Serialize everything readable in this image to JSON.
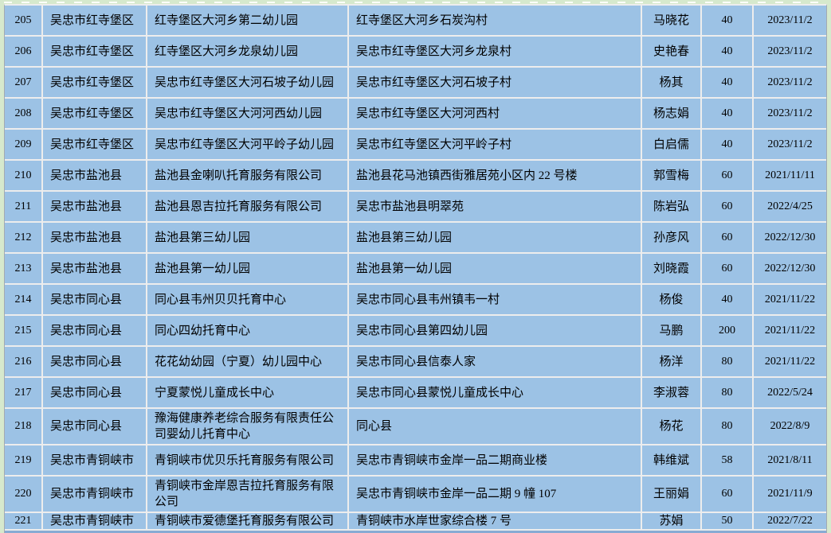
{
  "colors": {
    "cell-blue": "#9cc2e5",
    "margin-green": "#d6e9cd",
    "gridline": "#ededed",
    "table-edge": "#a3aab1",
    "partial-row-blue": "#88abd3",
    "text": "#000000"
  },
  "table": {
    "columns": [
      {
        "key": "row_no",
        "name": "row-number"
      },
      {
        "key": "district",
        "name": "district"
      },
      {
        "key": "name",
        "name": "facility-name"
      },
      {
        "key": "address",
        "name": "address"
      },
      {
        "key": "person",
        "name": "contact-person"
      },
      {
        "key": "capacity",
        "name": "capacity"
      },
      {
        "key": "date",
        "name": "date"
      }
    ],
    "rows": [
      {
        "row_no": "205",
        "district": "吴忠市红寺堡区",
        "name": "红寺堡区大河乡第二幼儿园",
        "address": "红寺堡区大河乡石炭沟村",
        "person": "马晓花",
        "capacity": "40",
        "date": "2023/11/2"
      },
      {
        "row_no": "206",
        "district": "吴忠市红寺堡区",
        "name": "红寺堡区大河乡龙泉幼儿园",
        "address": "吴忠市红寺堡区大河乡龙泉村",
        "person": "史艳春",
        "capacity": "40",
        "date": "2023/11/2"
      },
      {
        "row_no": "207",
        "district": "吴忠市红寺堡区",
        "name": "吴忠市红寺堡区大河石坡子幼儿园",
        "address": "吴忠市红寺堡区大河石坡子村",
        "person": "杨其",
        "capacity": "40",
        "date": "2023/11/2"
      },
      {
        "row_no": "208",
        "district": "吴忠市红寺堡区",
        "name": "吴忠市红寺堡区大河河西幼儿园",
        "address": "吴忠市红寺堡区大河河西村",
        "person": "杨志娟",
        "capacity": "40",
        "date": "2023/11/2"
      },
      {
        "row_no": "209",
        "district": "吴忠市红寺堡区",
        "name": "吴忠市红寺堡区大河平岭子幼儿园",
        "address": "吴忠市红寺堡区大河平岭子村",
        "person": "白启儒",
        "capacity": "40",
        "date": "2023/11/2"
      },
      {
        "row_no": "210",
        "district": "吴忠市盐池县",
        "name": "盐池县金喇叭托育服务有限公司",
        "address": "盐池县花马池镇西街雅居苑小区内 22 号楼",
        "person": "郭雪梅",
        "capacity": "60",
        "date": "2021/11/11"
      },
      {
        "row_no": "211",
        "district": "吴忠市盐池县",
        "name": "盐池县恩吉拉托育服务有限公司",
        "address": "吴忠市盐池县明翠苑",
        "person": "陈岩弘",
        "capacity": "60",
        "date": "2022/4/25"
      },
      {
        "row_no": "212",
        "district": "吴忠市盐池县",
        "name": "盐池县第三幼儿园",
        "address": "盐池县第三幼儿园",
        "person": "孙彦风",
        "capacity": "60",
        "date": "2022/12/30"
      },
      {
        "row_no": "213",
        "district": "吴忠市盐池县",
        "name": "盐池县第一幼儿园",
        "address": "盐池县第一幼儿园",
        "person": "刘晓霞",
        "capacity": "60",
        "date": "2022/12/30"
      },
      {
        "row_no": "214",
        "district": "吴忠市同心县",
        "name": "同心县韦州贝贝托育中心",
        "address": "吴忠市同心县韦州镇韦一村",
        "person": "杨俊",
        "capacity": "40",
        "date": "2021/11/22"
      },
      {
        "row_no": "215",
        "district": "吴忠市同心县",
        "name": "同心四幼托育中心",
        "address": "吴忠市同心县第四幼儿园",
        "person": "马鹏",
        "capacity": "200",
        "date": "2021/11/22"
      },
      {
        "row_no": "216",
        "district": "吴忠市同心县",
        "name": "花花幼幼园（宁夏）幼儿园中心",
        "address": "吴忠市同心县信泰人家",
        "person": "杨洋",
        "capacity": "80",
        "date": "2021/11/22"
      },
      {
        "row_no": "217",
        "district": "吴忠市同心县",
        "name": "宁夏蒙悦儿童成长中心",
        "address": "吴忠市同心县蒙悦儿童成长中心",
        "person": "李淑蓉",
        "capacity": "80",
        "date": "2022/5/24"
      },
      {
        "row_no": "218",
        "district": "吴忠市同心县",
        "name": "豫海健康养老综合服务有限责任公司婴幼儿托育中心",
        "address": "同心县",
        "person": "杨花",
        "capacity": "80",
        "date": "2022/8/9"
      },
      {
        "row_no": "219",
        "district": "吴忠市青铜峡市",
        "name": "青铜峡市优贝乐托育服务有限公司",
        "address": "吴忠市青铜峡市金岸一品二期商业楼",
        "person": "韩维斌",
        "capacity": "58",
        "date": "2021/8/11"
      },
      {
        "row_no": "220",
        "district": "吴忠市青铜峡市",
        "name": "青铜峡市金岸恩吉拉托育服务有限公司",
        "address": "吴忠市青铜峡市金岸一品二期 9 幢 107",
        "person": "王丽娟",
        "capacity": "60",
        "date": "2021/11/9"
      },
      {
        "row_no": "221",
        "district": "吴忠市青铜峡市",
        "name": "青铜峡市爱德堡托育服务有限公司",
        "address": "青铜峡市水岸世家综合楼 7 号",
        "person": "苏娟",
        "capacity": "50",
        "date": "2022/7/22"
      }
    ]
  }
}
